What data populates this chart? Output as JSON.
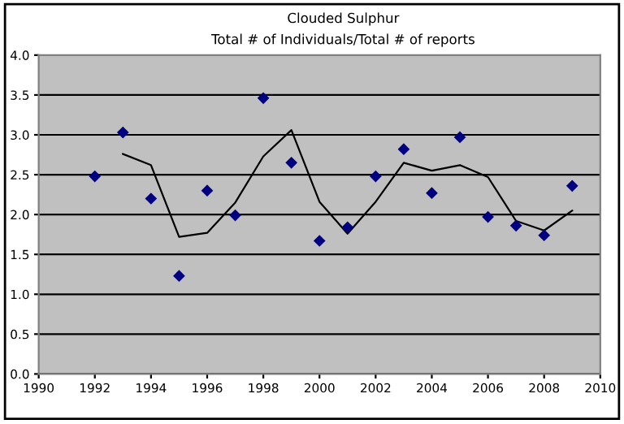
{
  "chart_data": {
    "type": "scatter",
    "title": "Clouded Sulphur",
    "subtitle": "Total # of Individuals/Total # of reports",
    "series": [
      {
        "color": "#000080",
        "marker": "diamond",
        "x": [
          1992,
          1993,
          1994,
          1995,
          1996,
          1997,
          1998,
          1999,
          2000,
          2001,
          2002,
          2003,
          2004,
          2005,
          2006,
          2007,
          2008,
          2009
        ],
        "values": [
          2.48,
          3.03,
          2.2,
          1.23,
          2.3,
          1.99,
          3.46,
          2.65,
          1.67,
          1.84,
          2.48,
          2.82,
          2.27,
          2.97,
          1.97,
          1.86,
          1.74,
          2.36
        ]
      },
      {
        "type": "line",
        "color": "#000000",
        "marker": "none",
        "x": [
          1993,
          1994,
          1995,
          1996,
          1997,
          1998,
          1999,
          2000,
          2001,
          2002,
          2003,
          2004,
          2005,
          2006,
          2007,
          2008,
          2009
        ],
        "values": [
          2.76,
          2.62,
          1.72,
          1.77,
          2.15,
          2.73,
          3.06,
          2.16,
          1.76,
          2.16,
          2.65,
          2.55,
          2.62,
          2.47,
          1.92,
          1.8,
          2.05
        ]
      }
    ],
    "xlim": [
      1990,
      2010
    ],
    "xticks": [
      1990,
      1992,
      1994,
      1996,
      1998,
      2000,
      2002,
      2004,
      2006,
      2008,
      2010
    ],
    "ylim": [
      0,
      4
    ],
    "yticks": [
      {
        "value": 0,
        "label": "0.0"
      },
      {
        "value": 0.5,
        "label": "0.5"
      },
      {
        "value": 1,
        "label": "1.0"
      },
      {
        "value": 1.5,
        "label": "1.5"
      },
      {
        "value": 2,
        "label": "2.0"
      },
      {
        "value": 2.5,
        "label": "2.5"
      },
      {
        "value": 3,
        "label": "3.0"
      },
      {
        "value": 3.5,
        "label": "3.5"
      },
      {
        "value": 4,
        "label": "4.0"
      }
    ],
    "grid": "y",
    "legend": false
  }
}
